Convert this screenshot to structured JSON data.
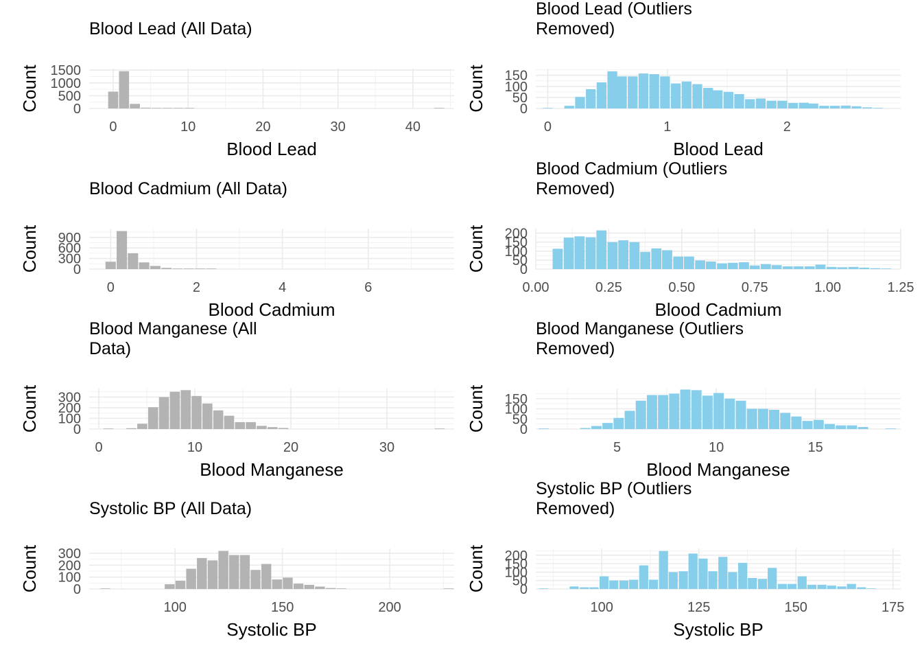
{
  "chart_data": [
    {
      "type": "bar",
      "title": "Blood Lead (All Data)",
      "xlabel": "Blood Lead",
      "ylabel": "Count",
      "xlim": [
        -3.2,
        45.5
      ],
      "ylim": [
        0,
        1560
      ],
      "x_ticks": [
        0,
        10,
        20,
        30,
        40
      ],
      "x_tick_labels": [
        "0",
        "10",
        "20",
        "30",
        "40"
      ],
      "y_ticks": [
        0,
        500,
        1000,
        1500
      ],
      "y_tick_labels": [
        "0",
        "500",
        "1000",
        "1500"
      ],
      "bar_color": "#b3b3b3",
      "bin_width": 1.45,
      "bins": [
        {
          "x": 0.0,
          "count": 660
        },
        {
          "x": 1.45,
          "count": 1460
        },
        {
          "x": 2.9,
          "count": 180
        },
        {
          "x": 4.35,
          "count": 30
        },
        {
          "x": 5.8,
          "count": 8
        },
        {
          "x": 7.25,
          "count": 3
        },
        {
          "x": 8.7,
          "count": 2
        },
        {
          "x": 10.15,
          "count": 1
        },
        {
          "x": 43.5,
          "count": 1
        }
      ]
    },
    {
      "type": "bar",
      "title": "Blood Lead (Outliers Removed)",
      "title_lines": [
        "Blood Lead (Outliers",
        "Removed)"
      ],
      "xlabel": "Blood Lead",
      "ylabel": "Count",
      "xlim": [
        -0.1,
        2.95
      ],
      "ylim": [
        0,
        180
      ],
      "x_ticks": [
        0,
        1,
        2
      ],
      "x_tick_labels": [
        "0",
        "1",
        "2"
      ],
      "y_ticks": [
        0,
        50,
        100,
        150
      ],
      "y_tick_labels": [
        "0",
        "50",
        "100",
        "150"
      ],
      "bar_color": "#87ceeb",
      "bin_width": 0.089,
      "bins": [
        {
          "x": 0.0,
          "count": 2
        },
        {
          "x": 0.18,
          "count": 12
        },
        {
          "x": 0.27,
          "count": 52
        },
        {
          "x": 0.36,
          "count": 87
        },
        {
          "x": 0.45,
          "count": 118
        },
        {
          "x": 0.54,
          "count": 168
        },
        {
          "x": 0.62,
          "count": 145
        },
        {
          "x": 0.71,
          "count": 145
        },
        {
          "x": 0.8,
          "count": 158
        },
        {
          "x": 0.89,
          "count": 155
        },
        {
          "x": 0.98,
          "count": 145
        },
        {
          "x": 1.07,
          "count": 113
        },
        {
          "x": 1.16,
          "count": 122
        },
        {
          "x": 1.25,
          "count": 110
        },
        {
          "x": 1.34,
          "count": 93
        },
        {
          "x": 1.42,
          "count": 82
        },
        {
          "x": 1.51,
          "count": 75
        },
        {
          "x": 1.6,
          "count": 65
        },
        {
          "x": 1.69,
          "count": 42
        },
        {
          "x": 1.78,
          "count": 45
        },
        {
          "x": 1.87,
          "count": 35
        },
        {
          "x": 1.96,
          "count": 35
        },
        {
          "x": 2.05,
          "count": 25
        },
        {
          "x": 2.14,
          "count": 26
        },
        {
          "x": 2.22,
          "count": 22
        },
        {
          "x": 2.31,
          "count": 12
        },
        {
          "x": 2.4,
          "count": 12
        },
        {
          "x": 2.49,
          "count": 13
        },
        {
          "x": 2.58,
          "count": 10
        },
        {
          "x": 2.67,
          "count": 5
        },
        {
          "x": 2.76,
          "count": 2
        }
      ]
    },
    {
      "type": "bar",
      "title": "Blood Cadmium (All Data)",
      "xlabel": "Blood Cadmium",
      "ylabel": "Count",
      "xlim": [
        -0.5,
        8.0
      ],
      "ylim": [
        0,
        1150
      ],
      "x_ticks": [
        0,
        2,
        4,
        6
      ],
      "x_tick_labels": [
        "0",
        "2",
        "4",
        "6"
      ],
      "y_ticks": [
        0,
        300,
        600,
        900
      ],
      "y_tick_labels": [
        "0",
        "300",
        "600",
        "900"
      ],
      "bar_color": "#b3b3b3",
      "bin_width": 0.26,
      "bins": [
        {
          "x": 0.0,
          "count": 210
        },
        {
          "x": 0.26,
          "count": 1080
        },
        {
          "x": 0.52,
          "count": 450
        },
        {
          "x": 0.78,
          "count": 190
        },
        {
          "x": 1.04,
          "count": 90
        },
        {
          "x": 1.3,
          "count": 35
        },
        {
          "x": 1.56,
          "count": 15
        },
        {
          "x": 1.82,
          "count": 6
        },
        {
          "x": 2.08,
          "count": 3
        },
        {
          "x": 2.34,
          "count": 2
        }
      ]
    },
    {
      "type": "bar",
      "title": "Blood Cadmium (Outliers Removed)",
      "title_lines": [
        "Blood Cadmium (Outliers",
        "Removed)"
      ],
      "xlabel": "Blood Cadmium",
      "ylabel": "Count",
      "xlim": [
        0.0,
        1.25
      ],
      "ylim": [
        0,
        225
      ],
      "x_ticks": [
        0.0,
        0.25,
        0.5,
        0.75,
        1.0,
        1.25
      ],
      "x_tick_labels": [
        "0.00",
        "0.25",
        "0.50",
        "0.75",
        "1.00",
        "1.25"
      ],
      "y_ticks": [
        0,
        50,
        100,
        150,
        200
      ],
      "y_tick_labels": [
        "0",
        "50",
        "100",
        "150",
        "200"
      ],
      "bar_color": "#87ceeb",
      "bin_width": 0.0375,
      "bins": [
        {
          "x": 0.075,
          "count": 113
        },
        {
          "x": 0.113,
          "count": 175
        },
        {
          "x": 0.15,
          "count": 182
        },
        {
          "x": 0.188,
          "count": 177
        },
        {
          "x": 0.225,
          "count": 215
        },
        {
          "x": 0.263,
          "count": 150
        },
        {
          "x": 0.3,
          "count": 160
        },
        {
          "x": 0.338,
          "count": 150
        },
        {
          "x": 0.375,
          "count": 95
        },
        {
          "x": 0.413,
          "count": 115
        },
        {
          "x": 0.45,
          "count": 105
        },
        {
          "x": 0.488,
          "count": 70
        },
        {
          "x": 0.525,
          "count": 70
        },
        {
          "x": 0.563,
          "count": 48
        },
        {
          "x": 0.6,
          "count": 42
        },
        {
          "x": 0.638,
          "count": 32
        },
        {
          "x": 0.675,
          "count": 35
        },
        {
          "x": 0.713,
          "count": 38
        },
        {
          "x": 0.75,
          "count": 20
        },
        {
          "x": 0.788,
          "count": 28
        },
        {
          "x": 0.825,
          "count": 22
        },
        {
          "x": 0.863,
          "count": 15
        },
        {
          "x": 0.9,
          "count": 15
        },
        {
          "x": 0.938,
          "count": 15
        },
        {
          "x": 0.975,
          "count": 25
        },
        {
          "x": 1.013,
          "count": 12
        },
        {
          "x": 1.05,
          "count": 10
        },
        {
          "x": 1.088,
          "count": 12
        },
        {
          "x": 1.125,
          "count": 8
        },
        {
          "x": 1.163,
          "count": 5
        },
        {
          "x": 1.2,
          "count": 3
        }
      ]
    },
    {
      "type": "bar",
      "title": "Blood Manganese (All Data)",
      "title_lines": [
        "Blood Manganese (All",
        "Data)"
      ],
      "xlabel": "Blood Manganese",
      "ylabel": "Count",
      "xlim": [
        -1.0,
        37.0
      ],
      "ylim": [
        0,
        380
      ],
      "x_ticks": [
        0,
        10,
        20,
        30
      ],
      "x_tick_labels": [
        "0",
        "10",
        "20",
        "30"
      ],
      "y_ticks": [
        0,
        100,
        200,
        300
      ],
      "y_tick_labels": [
        "0",
        "100",
        "200",
        "300"
      ],
      "bar_color": "#b3b3b3",
      "bin_width": 1.13,
      "bins": [
        {
          "x": 1.0,
          "count": 1
        },
        {
          "x": 3.4,
          "count": 8
        },
        {
          "x": 4.53,
          "count": 50
        },
        {
          "x": 5.66,
          "count": 205
        },
        {
          "x": 6.79,
          "count": 300
        },
        {
          "x": 7.92,
          "count": 350
        },
        {
          "x": 9.05,
          "count": 365
        },
        {
          "x": 10.18,
          "count": 310
        },
        {
          "x": 11.31,
          "count": 240
        },
        {
          "x": 12.44,
          "count": 175
        },
        {
          "x": 13.57,
          "count": 125
        },
        {
          "x": 14.7,
          "count": 65
        },
        {
          "x": 15.83,
          "count": 65
        },
        {
          "x": 16.96,
          "count": 30
        },
        {
          "x": 18.09,
          "count": 18
        },
        {
          "x": 19.22,
          "count": 10
        },
        {
          "x": 35.5,
          "count": 1
        }
      ]
    },
    {
      "type": "bar",
      "title": "Blood Manganese (Outliers Removed)",
      "title_lines": [
        "Blood Manganese (Outliers",
        "Removed)"
      ],
      "xlabel": "Blood Manganese",
      "ylabel": "Count",
      "xlim": [
        0.9,
        19.3
      ],
      "ylim": [
        0,
        200
      ],
      "x_ticks": [
        5,
        10,
        15
      ],
      "x_tick_labels": [
        "5",
        "10",
        "15"
      ],
      "y_ticks": [
        0,
        50,
        100,
        150
      ],
      "y_tick_labels": [
        "0",
        "50",
        "100",
        "150"
      ],
      "bar_color": "#87ceeb",
      "bin_width": 0.56,
      "bins": [
        {
          "x": 1.3,
          "count": 1
        },
        {
          "x": 3.4,
          "count": 5
        },
        {
          "x": 3.96,
          "count": 15
        },
        {
          "x": 4.52,
          "count": 30
        },
        {
          "x": 5.08,
          "count": 55
        },
        {
          "x": 5.64,
          "count": 90
        },
        {
          "x": 6.2,
          "count": 140
        },
        {
          "x": 6.76,
          "count": 168
        },
        {
          "x": 7.32,
          "count": 168
        },
        {
          "x": 7.88,
          "count": 175
        },
        {
          "x": 8.44,
          "count": 195
        },
        {
          "x": 9.0,
          "count": 192
        },
        {
          "x": 9.56,
          "count": 165
        },
        {
          "x": 10.12,
          "count": 178
        },
        {
          "x": 10.68,
          "count": 150
        },
        {
          "x": 11.24,
          "count": 140
        },
        {
          "x": 11.8,
          "count": 100
        },
        {
          "x": 12.36,
          "count": 100
        },
        {
          "x": 12.92,
          "count": 95
        },
        {
          "x": 13.48,
          "count": 80
        },
        {
          "x": 14.04,
          "count": 62
        },
        {
          "x": 14.6,
          "count": 40
        },
        {
          "x": 15.16,
          "count": 45
        },
        {
          "x": 15.72,
          "count": 25
        },
        {
          "x": 16.28,
          "count": 18
        },
        {
          "x": 16.84,
          "count": 18
        },
        {
          "x": 17.4,
          "count": 10
        },
        {
          "x": 18.8,
          "count": 2
        }
      ]
    },
    {
      "type": "bar",
      "title": "Systolic BP (All Data)",
      "xlabel": "Systolic BP",
      "ylabel": "Count",
      "xlim": [
        60.0,
        230.0
      ],
      "ylim": [
        0,
        340
      ],
      "x_ticks": [
        100,
        150,
        200
      ],
      "x_tick_labels": [
        "100",
        "150",
        "200"
      ],
      "y_ticks": [
        0,
        100,
        200,
        300
      ],
      "y_tick_labels": [
        "0",
        "100",
        "200",
        "300"
      ],
      "bar_color": "#b3b3b3",
      "bin_width": 5.0,
      "bins": [
        {
          "x": 67.5,
          "count": 1
        },
        {
          "x": 97.5,
          "count": 40
        },
        {
          "x": 102.5,
          "count": 70
        },
        {
          "x": 107.5,
          "count": 170
        },
        {
          "x": 112.5,
          "count": 260
        },
        {
          "x": 117.5,
          "count": 240
        },
        {
          "x": 122.5,
          "count": 320
        },
        {
          "x": 127.5,
          "count": 285
        },
        {
          "x": 132.5,
          "count": 285
        },
        {
          "x": 137.5,
          "count": 160
        },
        {
          "x": 142.5,
          "count": 210
        },
        {
          "x": 147.5,
          "count": 80
        },
        {
          "x": 152.5,
          "count": 95
        },
        {
          "x": 157.5,
          "count": 45
        },
        {
          "x": 162.5,
          "count": 35
        },
        {
          "x": 167.5,
          "count": 20
        },
        {
          "x": 172.5,
          "count": 8
        },
        {
          "x": 177.5,
          "count": 3
        },
        {
          "x": 227.5,
          "count": 1
        }
      ]
    },
    {
      "type": "bar",
      "title": "Systolic BP (Outliers Removed)",
      "title_lines": [
        "Systolic BP (Outliers",
        "Removed)"
      ],
      "xlabel": "Systolic BP",
      "ylabel": "Count",
      "xlim": [
        83.0,
        177.0
      ],
      "ylim": [
        0,
        240
      ],
      "x_ticks": [
        100,
        125,
        150,
        175
      ],
      "x_tick_labels": [
        "100",
        "125",
        "150",
        "175"
      ],
      "y_ticks": [
        0,
        50,
        100,
        150,
        200
      ],
      "y_tick_labels": [
        "0",
        "50",
        "100",
        "150",
        "200"
      ],
      "bar_color": "#87ceeb",
      "bin_width": 2.55,
      "bins": [
        {
          "x": 85.0,
          "count": 1
        },
        {
          "x": 92.9,
          "count": 15
        },
        {
          "x": 95.5,
          "count": 10
        },
        {
          "x": 98.0,
          "count": 10
        },
        {
          "x": 100.6,
          "count": 75
        },
        {
          "x": 103.1,
          "count": 50
        },
        {
          "x": 105.7,
          "count": 50
        },
        {
          "x": 108.2,
          "count": 55
        },
        {
          "x": 110.8,
          "count": 140
        },
        {
          "x": 113.3,
          "count": 55
        },
        {
          "x": 115.9,
          "count": 225
        },
        {
          "x": 118.4,
          "count": 100
        },
        {
          "x": 121.0,
          "count": 105
        },
        {
          "x": 123.5,
          "count": 210
        },
        {
          "x": 126.1,
          "count": 180
        },
        {
          "x": 128.6,
          "count": 105
        },
        {
          "x": 131.2,
          "count": 190
        },
        {
          "x": 133.7,
          "count": 100
        },
        {
          "x": 136.3,
          "count": 155
        },
        {
          "x": 138.8,
          "count": 65
        },
        {
          "x": 141.4,
          "count": 60
        },
        {
          "x": 143.9,
          "count": 125
        },
        {
          "x": 146.5,
          "count": 30
        },
        {
          "x": 149.0,
          "count": 30
        },
        {
          "x": 151.6,
          "count": 75
        },
        {
          "x": 154.1,
          "count": 25
        },
        {
          "x": 156.7,
          "count": 25
        },
        {
          "x": 159.2,
          "count": 20
        },
        {
          "x": 161.8,
          "count": 15
        },
        {
          "x": 164.3,
          "count": 30
        },
        {
          "x": 166.9,
          "count": 10
        },
        {
          "x": 169.4,
          "count": 3
        }
      ]
    }
  ]
}
